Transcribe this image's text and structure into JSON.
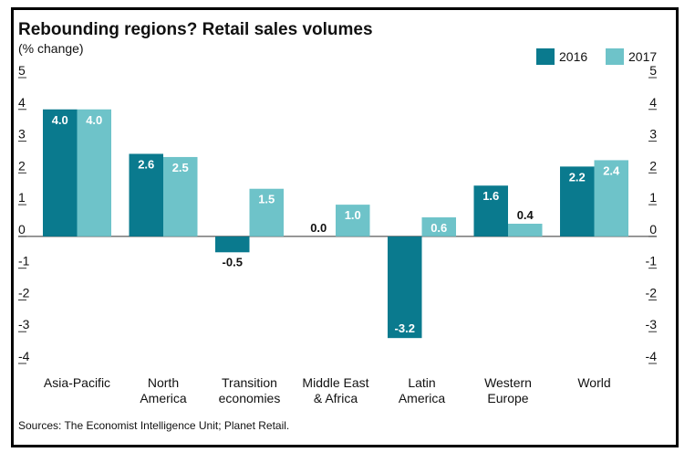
{
  "chart_data": {
    "type": "bar",
    "title": "Rebounding regions? Retail sales volumes",
    "subtitle": "(% change)",
    "source": "Sources: The Economist Intelligence Unit; Planet Retail.",
    "categories": [
      [
        "Asia-Pacific"
      ],
      [
        "North",
        "America"
      ],
      [
        "Transition",
        "economies"
      ],
      [
        "Middle East",
        "& Africa"
      ],
      [
        "Latin",
        "America"
      ],
      [
        "Western",
        "Europe"
      ],
      [
        "World"
      ]
    ],
    "series": [
      {
        "name": "2016",
        "color": "#0a7a8e",
        "values": [
          4.0,
          2.6,
          -0.5,
          0.0,
          -3.2,
          1.6,
          2.2
        ]
      },
      {
        "name": "2017",
        "color": "#6ec3c9",
        "values": [
          4.0,
          2.5,
          1.5,
          1.0,
          0.6,
          0.4,
          2.4
        ]
      }
    ],
    "ylim": [
      -4,
      5
    ],
    "yticks": [
      "5",
      "4",
      "3",
      "2",
      "1",
      "0",
      "-1",
      "-2",
      "-3",
      "-4"
    ],
    "legend_position": "top-right",
    "grid": false
  }
}
